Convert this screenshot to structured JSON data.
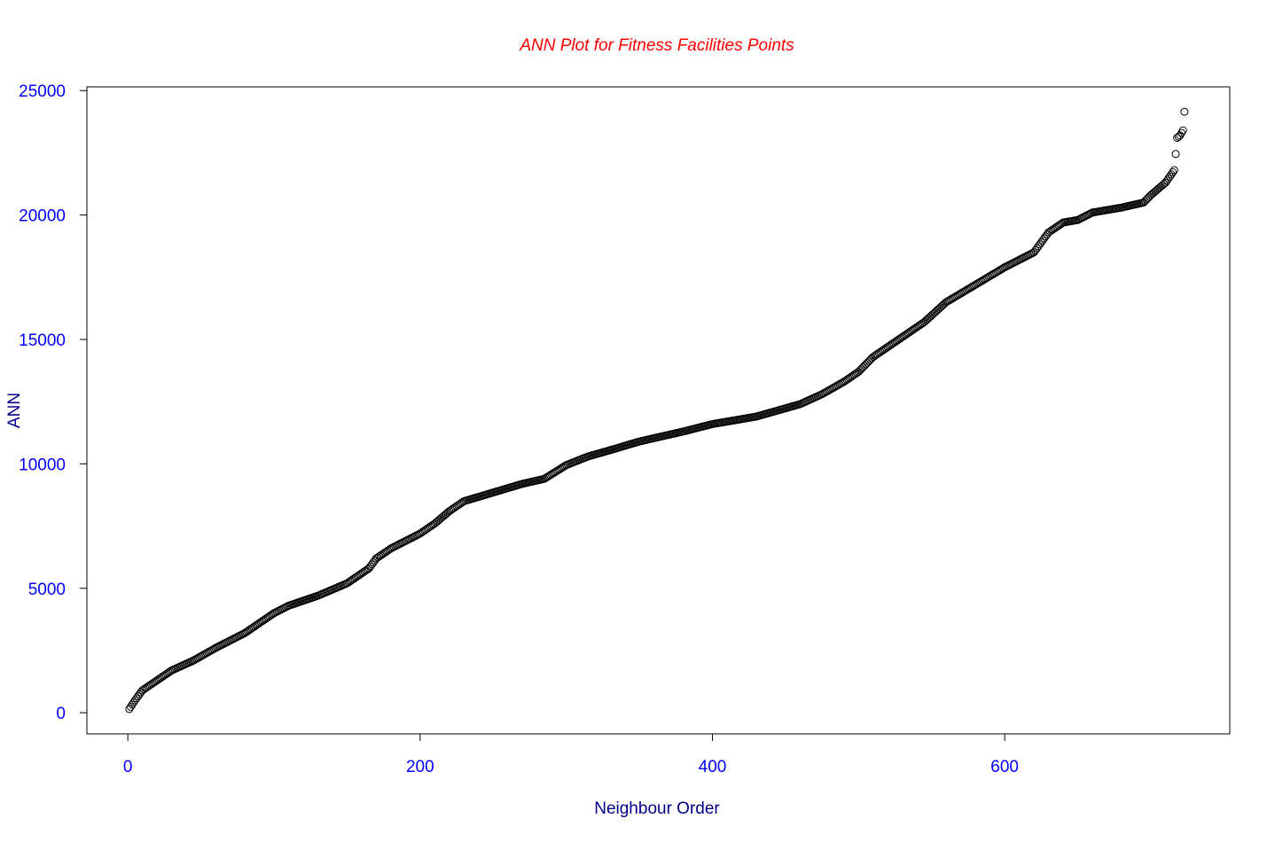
{
  "chart_data": {
    "type": "scatter",
    "title": "ANN Plot for Fitness Facilities Points",
    "xlabel": "Neighbour Order",
    "ylabel": "ANN",
    "xlim": [
      -28,
      754
    ],
    "ylim": [
      -850,
      25150
    ],
    "x_ticks": [
      0,
      200,
      400,
      600
    ],
    "x_tick_labels": [
      "0",
      "200",
      "400",
      "600"
    ],
    "y_ticks": [
      0,
      5000,
      10000,
      15000,
      20000,
      25000
    ],
    "y_tick_labels": [
      "0",
      "5000",
      "10000",
      "15000",
      "20000",
      "25000"
    ],
    "grid": false,
    "legend": "none",
    "marker": "open-circle",
    "n_points": 723,
    "colors": {
      "title": "#ff0000",
      "axis_title": "#00008b",
      "tick_label": "#0000ff",
      "points": "#000000",
      "axes": "#000000"
    },
    "curve_anchors": {
      "x": [
        1,
        5,
        10,
        20,
        30,
        45,
        60,
        80,
        100,
        110,
        130,
        150,
        165,
        170,
        180,
        200,
        210,
        220,
        230,
        250,
        270,
        285,
        300,
        315,
        330,
        350,
        380,
        400,
        430,
        460,
        475,
        490,
        500,
        510,
        530,
        545,
        560,
        580,
        600,
        620,
        630,
        640,
        650,
        660,
        680,
        695,
        700,
        710,
        716,
        718,
        720,
        722,
        723
      ],
      "y": [
        150,
        500,
        900,
        1300,
        1700,
        2100,
        2600,
        3200,
        4000,
        4300,
        4700,
        5200,
        5800,
        6200,
        6600,
        7200,
        7600,
        8100,
        8500,
        8850,
        9200,
        9400,
        9950,
        10300,
        10550,
        10900,
        11300,
        11600,
        11900,
        12400,
        12800,
        13300,
        13700,
        14300,
        15100,
        15700,
        16500,
        17200,
        17900,
        18500,
        19300,
        19700,
        19800,
        20100,
        20300,
        20500,
        20800,
        21300,
        21800,
        23100,
        23200,
        23400,
        24150
      ]
    }
  }
}
